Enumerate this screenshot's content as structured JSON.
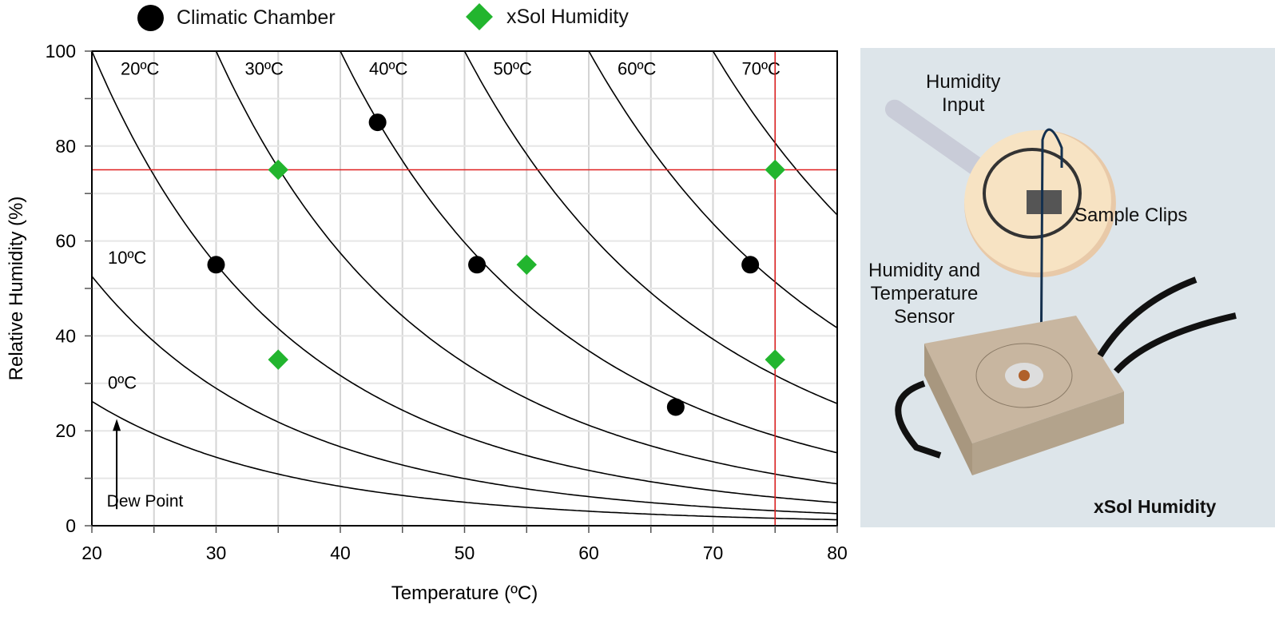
{
  "chart_data": {
    "type": "scatter",
    "xlabel": "Temperature (ºC)",
    "ylabel": "Relative Humidity (%)",
    "xlim": [
      20,
      80
    ],
    "ylim": [
      0,
      100
    ],
    "xticks": [
      20,
      30,
      40,
      50,
      60,
      70,
      80
    ],
    "yticks": [
      0,
      20,
      40,
      60,
      80,
      100
    ],
    "grid": true,
    "legend_placement": "top",
    "series": [
      {
        "name": "Climatic Chamber",
        "marker": "circle",
        "color": "#000000",
        "points": [
          [
            30,
            55
          ],
          [
            43,
            85
          ],
          [
            51,
            55
          ],
          [
            67,
            25
          ],
          [
            73,
            55
          ]
        ]
      },
      {
        "name": "xSol Humidity",
        "marker": "diamond",
        "color": "#22b52e",
        "points": [
          [
            35,
            75
          ],
          [
            75,
            75
          ],
          [
            55,
            55
          ],
          [
            35,
            35
          ],
          [
            75,
            35
          ]
        ]
      }
    ],
    "dew_point_curves": {
      "values_c": [
        0,
        10,
        20,
        30,
        40,
        50,
        60,
        70
      ],
      "labels": [
        "0ºC",
        "10ºC",
        "20ºC",
        "30ºC",
        "40ºC",
        "50ºC",
        "60ºC",
        "70ºC"
      ],
      "color": "#000000"
    },
    "reference_lines": {
      "color": "#e02020",
      "rh": 75,
      "temperature": 75
    },
    "annotation": "Dew Point"
  },
  "illustration": {
    "labels": {
      "humidity_input": [
        "Humidity",
        "Input"
      ],
      "sample_clips": "Sample Clips",
      "sensor": [
        "Humidity and",
        "Temperature",
        "Sensor"
      ],
      "product": "xSol Humidity"
    }
  }
}
